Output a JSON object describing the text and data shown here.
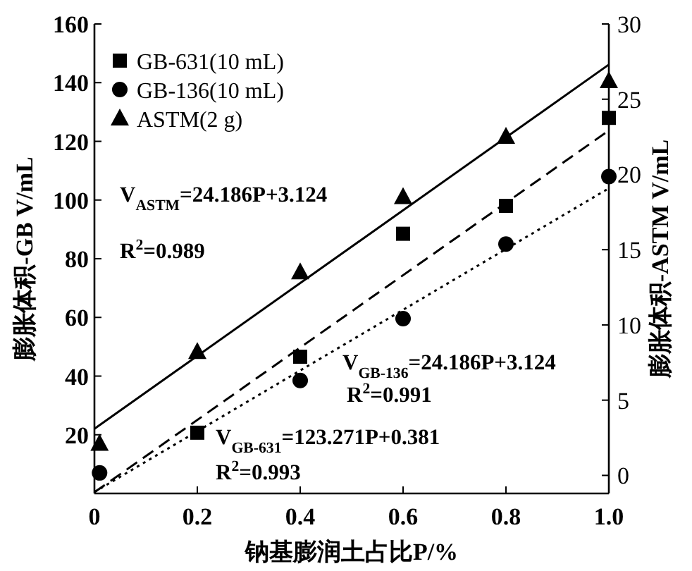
{
  "chart_data": {
    "type": "scatter",
    "xlabel": "钠基膨润土占比P/%",
    "ylabel": "膨胀体积-GB V/mL",
    "y2label": "膨胀体积-ASTM V/mL",
    "xlim": [
      0,
      1
    ],
    "xticks": [
      0,
      0.2,
      0.4,
      0.6,
      0.8,
      {
        "value": 1,
        "label": "1.0"
      }
    ],
    "ylim": [
      0,
      160
    ],
    "yticks": [
      20,
      40,
      60,
      80,
      100,
      120,
      140,
      160
    ],
    "y2lim": [
      -1.2,
      30
    ],
    "y2ticks": [
      0,
      5,
      10,
      15,
      20,
      25,
      30
    ],
    "grid": false,
    "legend": "top left",
    "series": [
      {
        "name": "GB-631(10 mL)",
        "marker": "square",
        "color": "#000000",
        "x": [
          0.2,
          0.4,
          0.6,
          0.8,
          1.0
        ],
        "values": [
          20.7,
          46.6,
          88.5,
          98,
          128
        ]
      },
      {
        "name": "GB-136(10 mL)",
        "marker": "circle",
        "color": "#000000",
        "x": [
          0.01,
          0.4,
          0.6,
          0.8,
          1.0
        ],
        "values": [
          7,
          38.5,
          59.6,
          85,
          108
        ]
      },
      {
        "name": "ASTM(2 g)",
        "marker": "triangle",
        "color": "#000000",
        "axis": "y2",
        "x": [
          0.01,
          0.2,
          0.4,
          0.6,
          0.8,
          1.0
        ],
        "values": [
          2.1,
          8.2,
          13.5,
          18.5,
          22.5,
          26.2
        ]
      },
      {
        "type": "line",
        "marker": "none",
        "line_style": "solid",
        "color": "#000000",
        "axis": "y2",
        "x": [
          0,
          1
        ],
        "values": [
          3.1,
          27.3
        ]
      },
      {
        "type": "line",
        "marker": "none",
        "line_style": "dashed",
        "color": "#000000",
        "x": [
          0,
          1
        ],
        "values": [
          0.4,
          123.7
        ]
      },
      {
        "type": "line",
        "marker": "none",
        "line_style": "dotted",
        "color": "#000000",
        "x": [
          0,
          1
        ],
        "values": [
          0.5,
          104
        ]
      }
    ],
    "annotations": [
      "V$_{ASTM}$=24.186P+3.124",
      "R$^{2}$=0.989",
      "V$_{GB-136}$=24.186P+3.124",
      "R$^{2}$=0.991",
      "V$_{GB-631}$=123.271P+0.381",
      "R$^{2}$=0.993"
    ]
  }
}
